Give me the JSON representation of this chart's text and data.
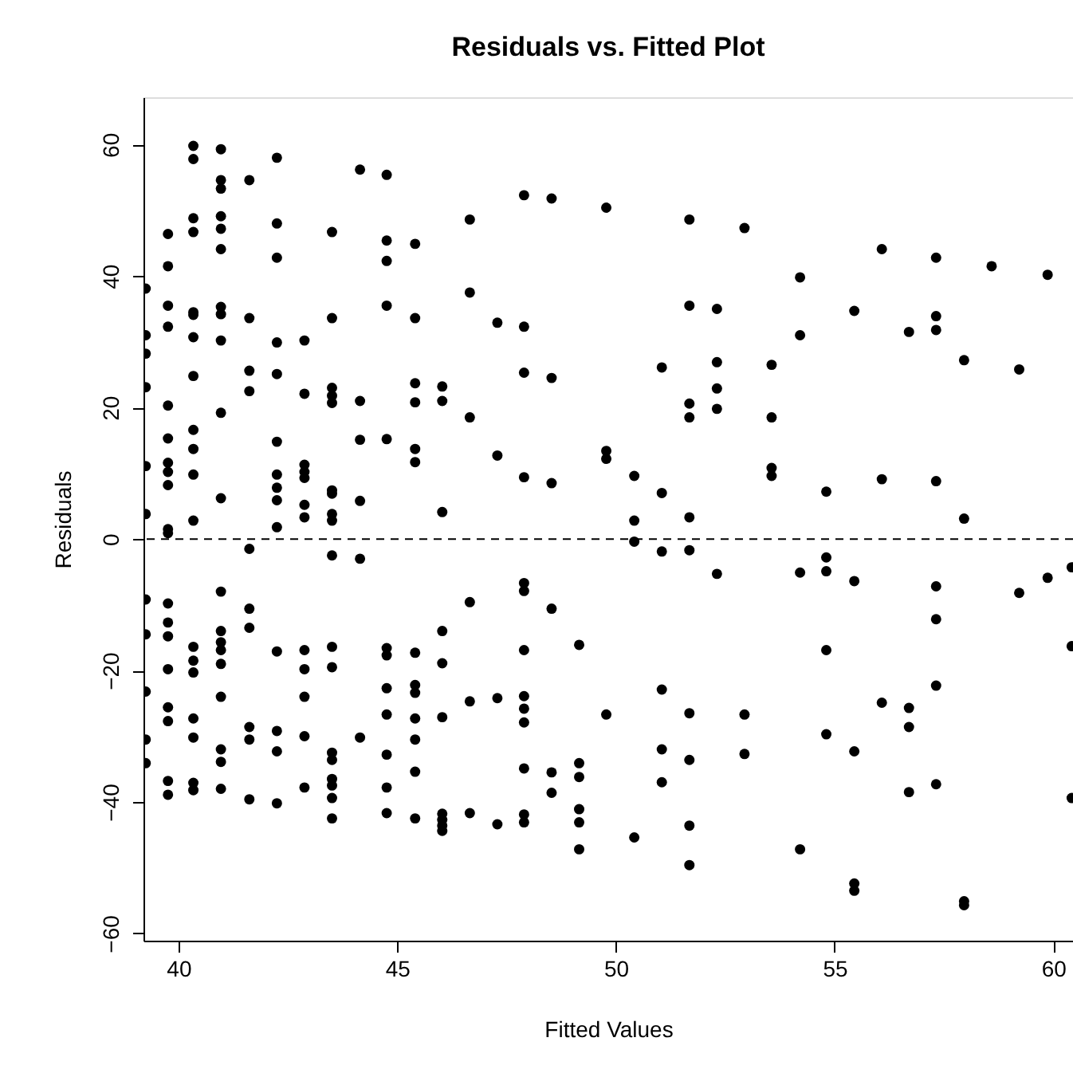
{
  "chart_data": {
    "type": "scatter",
    "title": "Residuals vs. Fitted Plot",
    "xlabel": "Fitted Values",
    "ylabel": "Residuals",
    "xlim": [
      39.2,
      60.45
    ],
    "ylim": [
      -61.1,
      67.2
    ],
    "xticks": [
      40,
      45,
      50,
      55,
      60
    ],
    "yticks": [
      -60,
      -40,
      -20,
      0,
      20,
      40,
      60
    ],
    "grid": false,
    "marker": "circle",
    "ref_lines": [
      {
        "axis": "y",
        "value": 0,
        "color": "#000000",
        "line_style": "dashed"
      }
    ],
    "series": [
      {
        "color": "#000000",
        "x": [
          39.25,
          39.25,
          39.25,
          39.25,
          39.25,
          39.25,
          39.25,
          39.25,
          39.25,
          39.25,
          39.25,
          39.76,
          39.76,
          39.76,
          39.76,
          39.76,
          39.76,
          39.76,
          39.76,
          39.76,
          39.76,
          39.76,
          39.76,
          39.76,
          39.76,
          39.76,
          39.76,
          39.76,
          39.76,
          39.76,
          40.34,
          40.34,
          40.34,
          40.34,
          40.34,
          40.34,
          40.34,
          40.34,
          40.34,
          40.34,
          40.34,
          40.34,
          40.34,
          40.34,
          40.34,
          40.34,
          40.34,
          40.34,
          40.34,
          40.97,
          40.97,
          40.97,
          40.97,
          40.97,
          40.97,
          40.97,
          40.97,
          40.97,
          40.97,
          40.97,
          40.97,
          40.97,
          40.97,
          40.97,
          40.97,
          40.97,
          40.97,
          40.97,
          40.97,
          41.62,
          41.62,
          41.62,
          41.62,
          41.62,
          41.62,
          41.62,
          41.62,
          41.62,
          41.62,
          42.25,
          42.25,
          42.25,
          42.25,
          42.25,
          42.25,
          42.25,
          42.25,
          42.25,
          42.25,
          42.25,
          42.25,
          42.25,
          42.25,
          42.88,
          42.88,
          42.88,
          42.88,
          42.88,
          42.88,
          42.88,
          42.88,
          42.88,
          42.88,
          42.88,
          42.88,
          43.51,
          43.51,
          43.51,
          43.51,
          43.51,
          43.51,
          43.51,
          43.51,
          43.51,
          43.51,
          43.51,
          43.51,
          43.51,
          43.51,
          43.51,
          43.51,
          43.51,
          43.51,
          44.15,
          44.15,
          44.15,
          44.15,
          44.15,
          44.15,
          44.76,
          44.76,
          44.76,
          44.76,
          44.76,
          44.76,
          44.76,
          44.76,
          44.76,
          44.76,
          44.76,
          44.76,
          45.41,
          45.41,
          45.41,
          45.41,
          45.41,
          45.41,
          45.41,
          45.41,
          45.41,
          45.41,
          45.41,
          45.41,
          45.41,
          46.03,
          46.03,
          46.03,
          46.03,
          46.03,
          46.03,
          46.03,
          46.03,
          46.03,
          46.03,
          46.66,
          46.66,
          46.66,
          46.66,
          46.66,
          46.66,
          47.29,
          47.29,
          47.29,
          47.29,
          47.9,
          47.9,
          47.9,
          47.9,
          47.9,
          47.9,
          47.9,
          47.9,
          47.9,
          47.9,
          47.9,
          47.9,
          47.9,
          48.53,
          48.53,
          48.53,
          48.53,
          48.53,
          48.53,
          49.16,
          49.16,
          49.16,
          49.16,
          49.16,
          49.16,
          49.78,
          49.78,
          49.78,
          49.78,
          50.42,
          50.42,
          50.42,
          50.42,
          51.05,
          51.05,
          51.05,
          51.05,
          51.05,
          51.05,
          51.68,
          51.68,
          51.68,
          51.68,
          51.68,
          51.68,
          51.68,
          51.68,
          51.68,
          51.68,
          52.31,
          52.31,
          52.31,
          52.31,
          52.31,
          52.94,
          52.94,
          52.94,
          53.56,
          53.56,
          53.56,
          53.56,
          54.21,
          54.21,
          54.21,
          54.21,
          54.81,
          54.81,
          54.81,
          54.81,
          54.81,
          55.45,
          55.45,
          55.45,
          55.45,
          55.45,
          56.08,
          56.08,
          56.08,
          56.7,
          56.7,
          56.7,
          56.7,
          57.32,
          57.32,
          57.32,
          57.32,
          57.32,
          57.32,
          57.32,
          57.32,
          57.96,
          57.96,
          57.96,
          57.96,
          58.59,
          59.22,
          59.22,
          59.87,
          59.87,
          60.42,
          60.42,
          60.42
        ],
        "values": [
          38.1,
          31.0,
          28.2,
          23.1,
          11.1,
          3.8,
          -9.2,
          -14.5,
          -23.2,
          -30.5,
          -34.1,
          46.4,
          41.5,
          35.5,
          32.3,
          20.3,
          15.3,
          11.6,
          10.2,
          8.2,
          1.5,
          0.9,
          -9.8,
          -12.7,
          -14.8,
          -19.8,
          -25.6,
          -27.7,
          -36.8,
          -38.9,
          59.8,
          57.8,
          48.8,
          46.7,
          34.5,
          34.1,
          30.7,
          24.8,
          16.6,
          13.7,
          9.8,
          2.8,
          -16.4,
          -18.5,
          -20.3,
          -27.3,
          -30.2,
          -37.1,
          -38.2,
          59.3,
          54.6,
          53.3,
          49.1,
          47.2,
          44.1,
          35.3,
          34.2,
          30.2,
          19.2,
          6.2,
          -8.0,
          -14.0,
          -15.7,
          -16.9,
          -19.0,
          -24.0,
          -32.0,
          -33.9,
          -38.0,
          54.6,
          33.6,
          25.6,
          22.5,
          -1.5,
          -10.6,
          -13.5,
          -28.6,
          -30.5,
          -39.6,
          58.0,
          48.0,
          42.8,
          29.9,
          25.1,
          14.8,
          9.8,
          7.8,
          5.9,
          1.8,
          -17.1,
          -29.2,
          -32.3,
          -40.2,
          30.2,
          22.1,
          11.3,
          10.2,
          9.3,
          5.2,
          3.3,
          -16.9,
          -19.8,
          -24.0,
          -30.0,
          -37.8,
          46.7,
          33.6,
          23.0,
          21.8,
          20.7,
          7.4,
          6.9,
          3.8,
          2.8,
          -2.5,
          -16.4,
          -19.5,
          -32.5,
          -33.6,
          -36.5,
          -37.5,
          -39.4,
          -42.5,
          56.2,
          21.0,
          15.1,
          5.8,
          -3.0,
          -30.2,
          55.4,
          45.4,
          42.3,
          35.5,
          15.2,
          -16.6,
          -17.7,
          -22.7,
          -26.7,
          -32.8,
          -37.8,
          -41.7,
          44.9,
          33.6,
          23.7,
          20.8,
          13.7,
          11.7,
          -17.3,
          -22.2,
          -23.4,
          -27.3,
          -30.5,
          -35.4,
          -42.5,
          23.2,
          21.0,
          4.1,
          -14.0,
          -18.9,
          -27.1,
          -41.8,
          -42.7,
          -43.6,
          -44.4,
          48.6,
          37.5,
          18.5,
          -9.6,
          -24.7,
          -41.7,
          32.9,
          12.7,
          -24.2,
          -43.4,
          52.3,
          32.3,
          25.3,
          9.4,
          -6.7,
          -7.9,
          -16.9,
          -23.9,
          -25.8,
          -27.9,
          -34.9,
          -41.9,
          -43.1,
          51.8,
          24.5,
          8.5,
          -10.6,
          -35.5,
          -38.6,
          -16.1,
          -34.1,
          -36.2,
          -41.1,
          -43.1,
          -47.2,
          50.4,
          13.4,
          12.2,
          -26.7,
          9.6,
          2.8,
          -0.4,
          -45.4,
          26.1,
          7.0,
          -1.9,
          -22.9,
          -32.0,
          -37.0,
          48.6,
          35.5,
          20.6,
          18.5,
          3.3,
          -1.7,
          -26.5,
          -33.6,
          -43.6,
          -49.6,
          35.0,
          26.9,
          22.9,
          19.8,
          -5.3,
          47.3,
          -26.7,
          -32.7,
          26.5,
          18.5,
          10.8,
          9.6,
          39.8,
          31.0,
          -5.1,
          -47.2,
          7.2,
          -2.8,
          -4.9,
          -16.9,
          -29.7,
          34.7,
          -6.4,
          -32.3,
          -52.4,
          -53.5,
          44.1,
          9.1,
          -24.9,
          31.5,
          -25.7,
          -28.6,
          -38.5,
          42.8,
          33.9,
          31.8,
          8.8,
          -7.2,
          -12.2,
          -22.3,
          -37.3,
          27.2,
          3.1,
          -55.1,
          -55.7,
          41.5,
          25.8,
          -8.2,
          40.2,
          -5.9,
          -4.3,
          -16.3,
          -39.4
        ]
      }
    ]
  }
}
